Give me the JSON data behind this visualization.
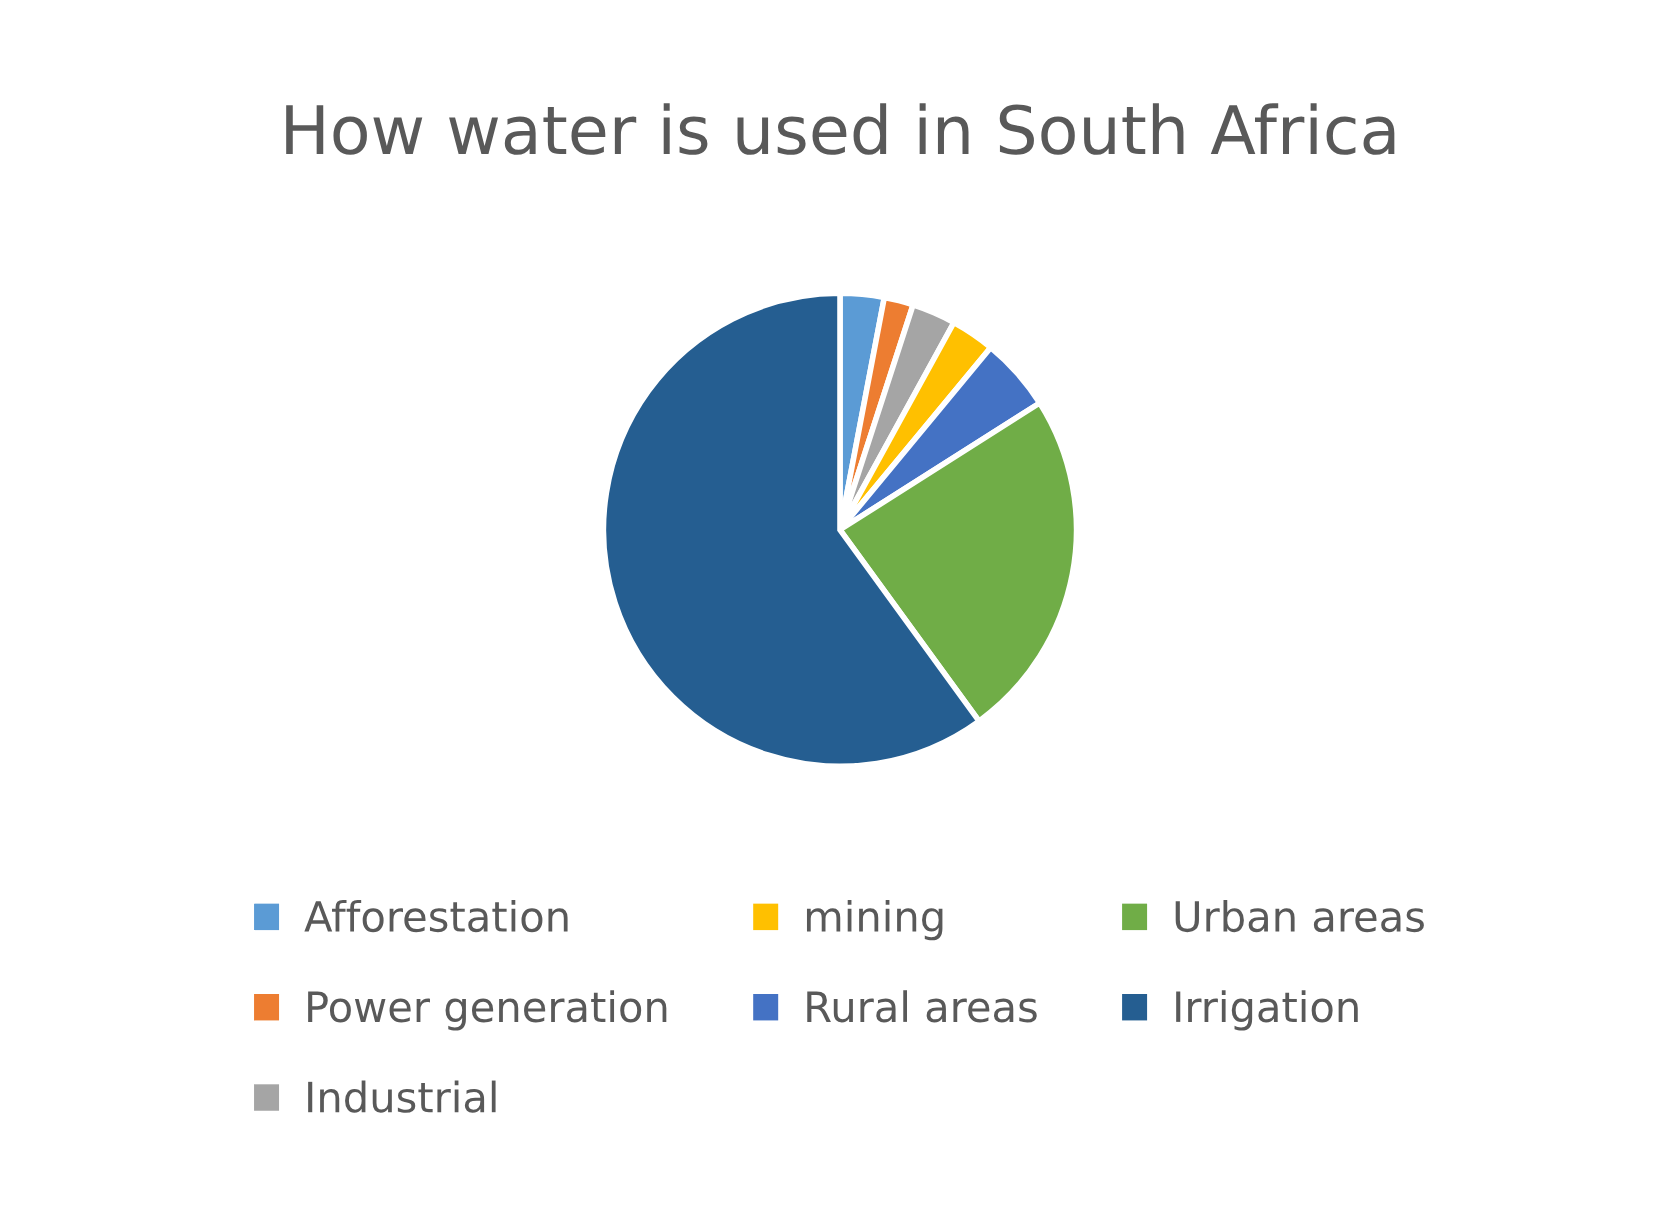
{
  "chart_data": {
    "type": "pie",
    "title": "How water is used in South Africa",
    "categories": [
      "Afforestation",
      "Power generation",
      "Industrial",
      "mining",
      "Rural areas",
      "Urban areas",
      "Irrigation"
    ],
    "values": [
      3,
      2,
      3,
      3,
      5,
      24,
      60
    ],
    "colors": [
      "#5b9bd5",
      "#ed7d31",
      "#a5a5a5",
      "#ffc000",
      "#4472c4",
      "#70ad47",
      "#255e91"
    ],
    "legend": "bottom"
  }
}
